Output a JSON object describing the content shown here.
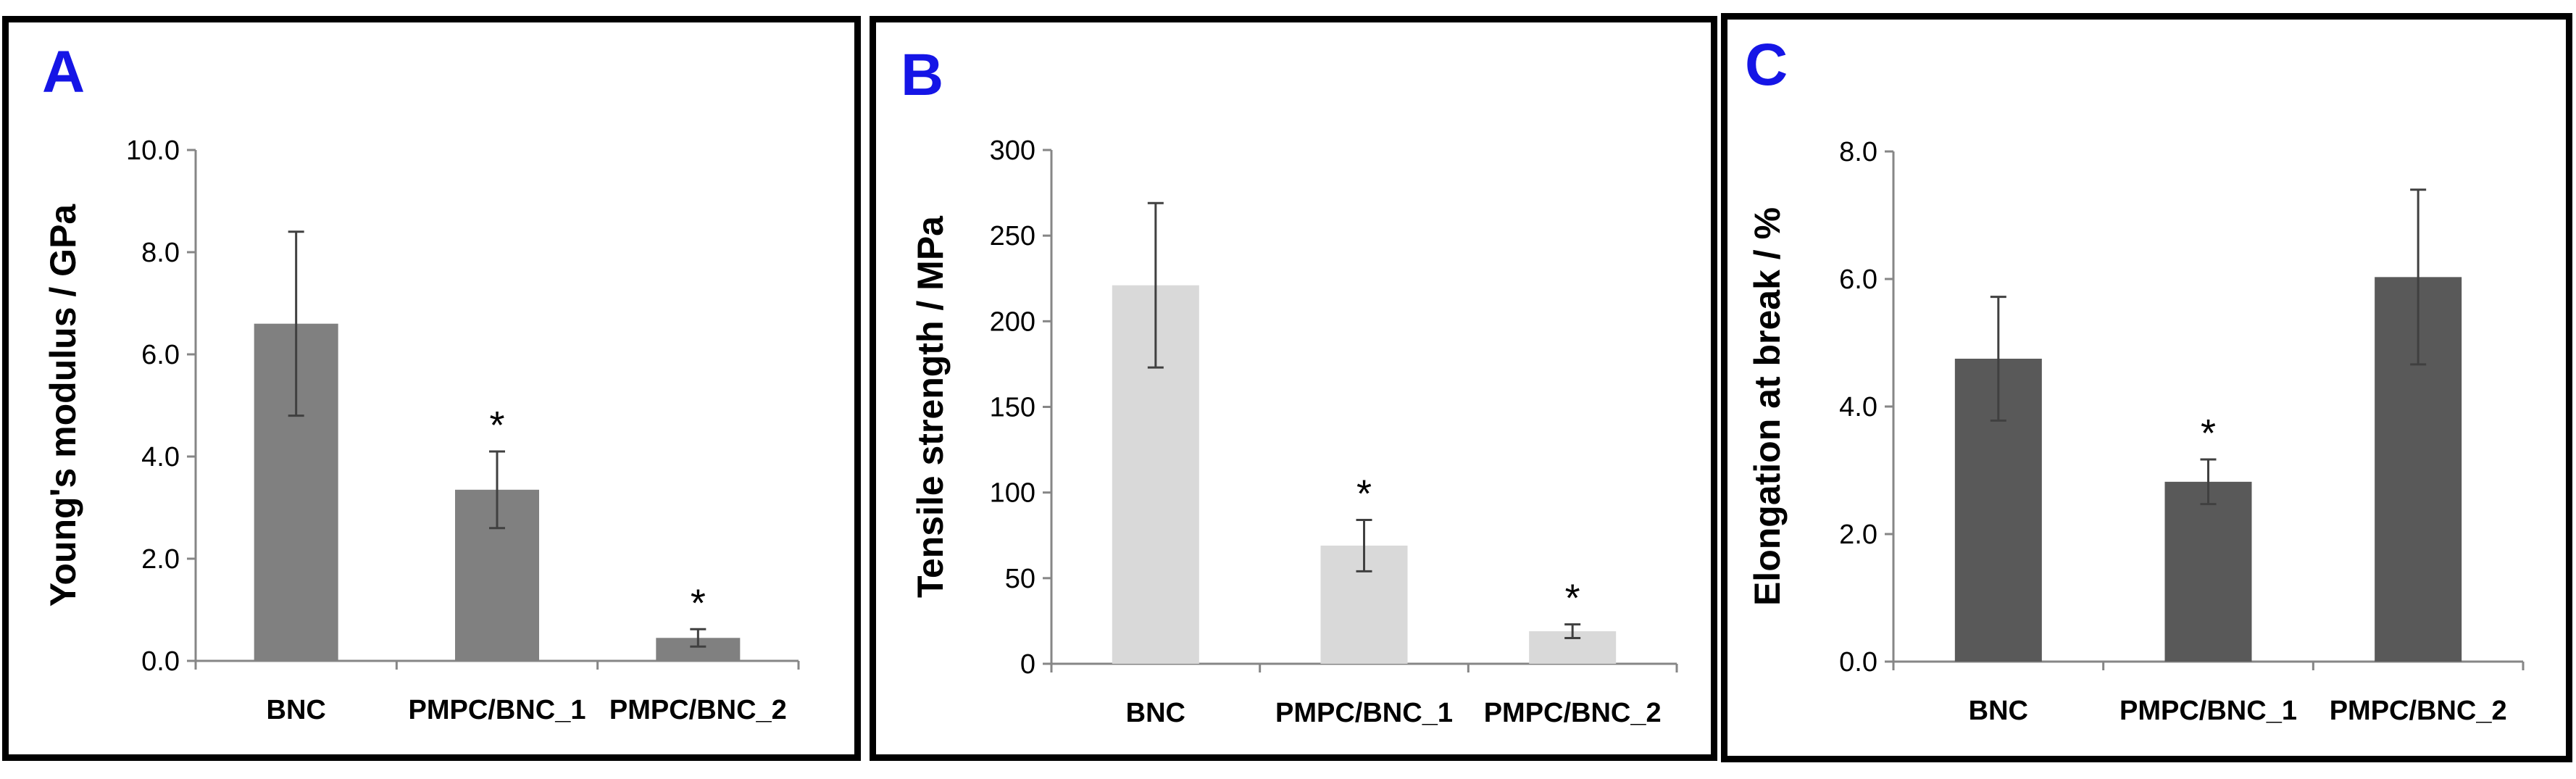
{
  "chart_data": [
    {
      "type": "bar",
      "panel_label": "A",
      "ylabel": "Young's modulus / GPa",
      "categories": [
        "BNC",
        "PMPC/BNC_1",
        "PMPC/BNC_2"
      ],
      "values": [
        6.6,
        3.35,
        0.45
      ],
      "errors": [
        1.8,
        0.75,
        0.17
      ],
      "significance": [
        "",
        "*",
        "*"
      ],
      "ylim": [
        0,
        10
      ],
      "yticks": [
        "0.0",
        "2.0",
        "4.0",
        "6.0",
        "8.0",
        "10.0"
      ],
      "bar_color": "#808080"
    },
    {
      "type": "bar",
      "panel_label": "B",
      "ylabel": "Tensile strength / MPa",
      "categories": [
        "BNC",
        "PMPC/BNC_1",
        "PMPC/BNC_2"
      ],
      "values": [
        221,
        69,
        19
      ],
      "errors": [
        48,
        15,
        4
      ],
      "significance": [
        "",
        "*",
        "*"
      ],
      "ylim": [
        0,
        300
      ],
      "yticks": [
        "0",
        "50",
        "100",
        "150",
        "200",
        "250",
        "300"
      ],
      "bar_color": "#d9d9d9"
    },
    {
      "type": "bar",
      "panel_label": "C",
      "ylabel": "Elongation at break / %",
      "categories": [
        "BNC",
        "PMPC/BNC_1",
        "PMPC/BNC_2"
      ],
      "values": [
        4.75,
        2.82,
        6.03
      ],
      "errors": [
        0.97,
        0.35,
        1.37
      ],
      "significance": [
        "",
        "*",
        ""
      ],
      "ylim": [
        0,
        8
      ],
      "yticks": [
        "0.0",
        "2.0",
        "4.0",
        "6.0",
        "8.0"
      ],
      "bar_color": "#595959"
    }
  ]
}
